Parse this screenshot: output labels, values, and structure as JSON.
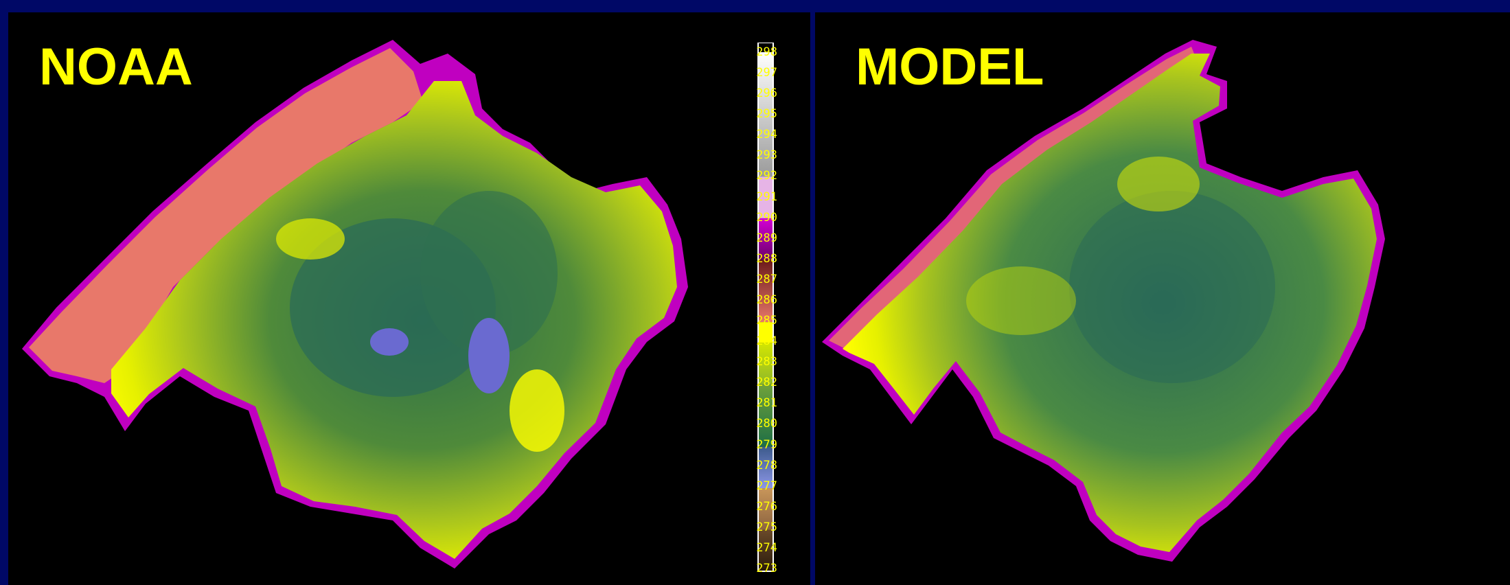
{
  "panels": {
    "left": {
      "title": "NOAA"
    },
    "right": {
      "title": "MODEL"
    }
  },
  "colorbar": {
    "ticks": [
      "298",
      "297",
      "296",
      "295",
      "294",
      "293",
      "292",
      "291",
      "290",
      "289",
      "288",
      "287",
      "286",
      "285",
      "284",
      "283",
      "282",
      "281",
      "280",
      "279",
      "278",
      "277",
      "276",
      "275",
      "274",
      "273"
    ],
    "segments": [
      {
        "from": 291,
        "to": 298,
        "color": "#ffffff",
        "to_color": "#8a8a8a"
      },
      {
        "from": 290,
        "to": 292,
        "color": "#e6b4e6"
      },
      {
        "from": 288,
        "to": 290,
        "color": "#d400d4",
        "to_color": "#6a006a"
      },
      {
        "from": 285,
        "to": 288,
        "color": "#6b1a1a",
        "to_color": "#e8786a"
      },
      {
        "from": 284,
        "to": 285,
        "color": "#ffff00"
      },
      {
        "from": 282,
        "to": 284,
        "color": "#d4e600",
        "to_color": "#8fb82a"
      },
      {
        "from": 279,
        "to": 282,
        "color": "#6fa23a",
        "to_color": "#1e6e46"
      },
      {
        "from": 277,
        "to": 279,
        "color": "#3c5a8c",
        "to_color": "#8c96e6"
      },
      {
        "from": 275,
        "to": 277,
        "color": "#c8965a",
        "to_color": "#8c6440"
      },
      {
        "from": 273,
        "to": 275,
        "color": "#6a4a2a",
        "to_color": "#2a1a0a"
      }
    ]
  }
}
